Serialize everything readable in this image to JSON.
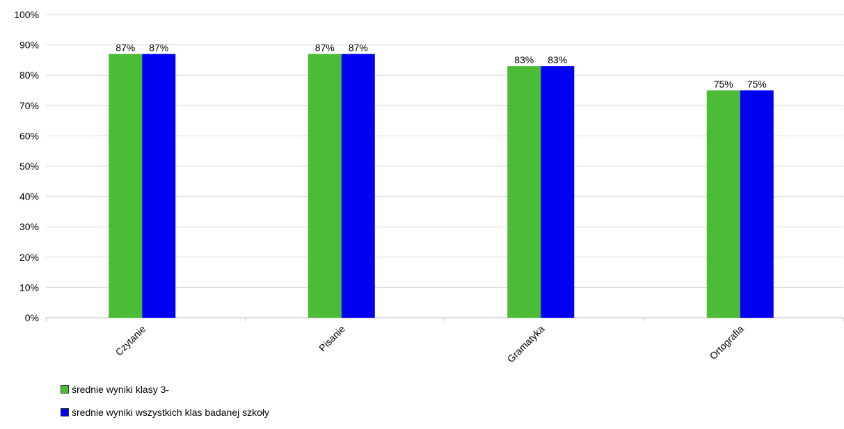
{
  "chart_data": {
    "type": "bar",
    "categories": [
      "Czytanie",
      "Pisanie",
      "Gramatyka",
      "Ortografia"
    ],
    "series": [
      {
        "name": "średnie wyniki klasy 3-",
        "values": [
          87,
          87,
          83,
          75
        ],
        "color": "#4cbb35"
      },
      {
        "name": "średnie wyniki wszystkich klas badanej szkoły",
        "values": [
          87,
          87,
          83,
          75
        ],
        "color": "#0000f5"
      }
    ],
    "data_labels": [
      [
        "87%",
        "87%",
        "83%",
        "75%"
      ],
      [
        "87%",
        "87%",
        "83%",
        "75%"
      ]
    ],
    "yticks": [
      "0%",
      "10%",
      "20%",
      "30%",
      "40%",
      "50%",
      "60%",
      "70%",
      "80%",
      "90%",
      "100%"
    ],
    "ylim": [
      0,
      100
    ],
    "title": "",
    "xlabel": "",
    "ylabel": "",
    "grid": true,
    "legend_position": "bottom-left"
  }
}
